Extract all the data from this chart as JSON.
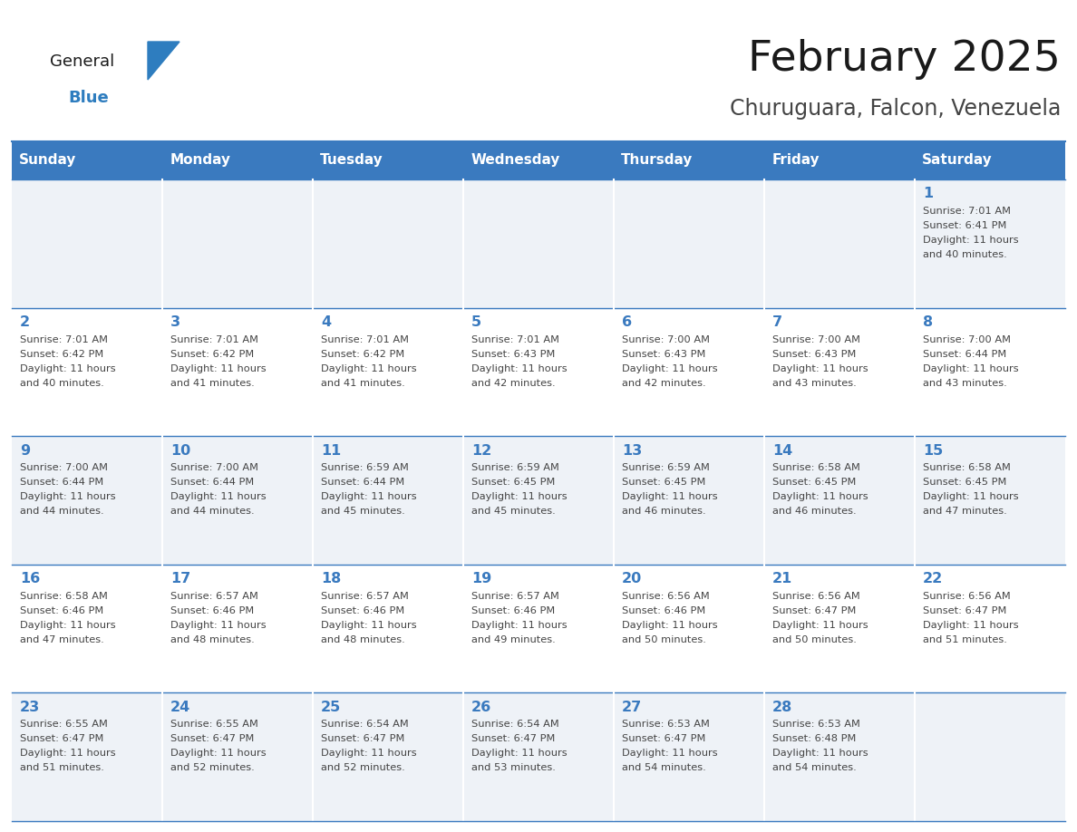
{
  "title": "February 2025",
  "subtitle": "Churuguara, Falcon, Venezuela",
  "days_of_week": [
    "Sunday",
    "Monday",
    "Tuesday",
    "Wednesday",
    "Thursday",
    "Friday",
    "Saturday"
  ],
  "header_bg": "#3a7abf",
  "header_text_color": "#ffffff",
  "cell_bg_odd": "#eef2f7",
  "cell_bg_even": "#ffffff",
  "border_color": "#3a7abf",
  "day_number_color": "#3a7abf",
  "text_color": "#444444",
  "title_color": "#1a1a1a",
  "subtitle_color": "#444444",
  "logo_general_color": "#1a1a1a",
  "logo_blue_color": "#2e7dbf",
  "calendar_data": [
    [
      null,
      null,
      null,
      null,
      null,
      null,
      {
        "day": 1,
        "sunrise": "7:01 AM",
        "sunset": "6:41 PM",
        "daylight": "11 hours",
        "daylight2": "and 40 minutes."
      }
    ],
    [
      {
        "day": 2,
        "sunrise": "7:01 AM",
        "sunset": "6:42 PM",
        "daylight": "11 hours",
        "daylight2": "and 40 minutes."
      },
      {
        "day": 3,
        "sunrise": "7:01 AM",
        "sunset": "6:42 PM",
        "daylight": "11 hours",
        "daylight2": "and 41 minutes."
      },
      {
        "day": 4,
        "sunrise": "7:01 AM",
        "sunset": "6:42 PM",
        "daylight": "11 hours",
        "daylight2": "and 41 minutes."
      },
      {
        "day": 5,
        "sunrise": "7:01 AM",
        "sunset": "6:43 PM",
        "daylight": "11 hours",
        "daylight2": "and 42 minutes."
      },
      {
        "day": 6,
        "sunrise": "7:00 AM",
        "sunset": "6:43 PM",
        "daylight": "11 hours",
        "daylight2": "and 42 minutes."
      },
      {
        "day": 7,
        "sunrise": "7:00 AM",
        "sunset": "6:43 PM",
        "daylight": "11 hours",
        "daylight2": "and 43 minutes."
      },
      {
        "day": 8,
        "sunrise": "7:00 AM",
        "sunset": "6:44 PM",
        "daylight": "11 hours",
        "daylight2": "and 43 minutes."
      }
    ],
    [
      {
        "day": 9,
        "sunrise": "7:00 AM",
        "sunset": "6:44 PM",
        "daylight": "11 hours",
        "daylight2": "and 44 minutes."
      },
      {
        "day": 10,
        "sunrise": "7:00 AM",
        "sunset": "6:44 PM",
        "daylight": "11 hours",
        "daylight2": "and 44 minutes."
      },
      {
        "day": 11,
        "sunrise": "6:59 AM",
        "sunset": "6:44 PM",
        "daylight": "11 hours",
        "daylight2": "and 45 minutes."
      },
      {
        "day": 12,
        "sunrise": "6:59 AM",
        "sunset": "6:45 PM",
        "daylight": "11 hours",
        "daylight2": "and 45 minutes."
      },
      {
        "day": 13,
        "sunrise": "6:59 AM",
        "sunset": "6:45 PM",
        "daylight": "11 hours",
        "daylight2": "and 46 minutes."
      },
      {
        "day": 14,
        "sunrise": "6:58 AM",
        "sunset": "6:45 PM",
        "daylight": "11 hours",
        "daylight2": "and 46 minutes."
      },
      {
        "day": 15,
        "sunrise": "6:58 AM",
        "sunset": "6:45 PM",
        "daylight": "11 hours",
        "daylight2": "and 47 minutes."
      }
    ],
    [
      {
        "day": 16,
        "sunrise": "6:58 AM",
        "sunset": "6:46 PM",
        "daylight": "11 hours",
        "daylight2": "and 47 minutes."
      },
      {
        "day": 17,
        "sunrise": "6:57 AM",
        "sunset": "6:46 PM",
        "daylight": "11 hours",
        "daylight2": "and 48 minutes."
      },
      {
        "day": 18,
        "sunrise": "6:57 AM",
        "sunset": "6:46 PM",
        "daylight": "11 hours",
        "daylight2": "and 48 minutes."
      },
      {
        "day": 19,
        "sunrise": "6:57 AM",
        "sunset": "6:46 PM",
        "daylight": "11 hours",
        "daylight2": "and 49 minutes."
      },
      {
        "day": 20,
        "sunrise": "6:56 AM",
        "sunset": "6:46 PM",
        "daylight": "11 hours",
        "daylight2": "and 50 minutes."
      },
      {
        "day": 21,
        "sunrise": "6:56 AM",
        "sunset": "6:47 PM",
        "daylight": "11 hours",
        "daylight2": "and 50 minutes."
      },
      {
        "day": 22,
        "sunrise": "6:56 AM",
        "sunset": "6:47 PM",
        "daylight": "11 hours",
        "daylight2": "and 51 minutes."
      }
    ],
    [
      {
        "day": 23,
        "sunrise": "6:55 AM",
        "sunset": "6:47 PM",
        "daylight": "11 hours",
        "daylight2": "and 51 minutes."
      },
      {
        "day": 24,
        "sunrise": "6:55 AM",
        "sunset": "6:47 PM",
        "daylight": "11 hours",
        "daylight2": "and 52 minutes."
      },
      {
        "day": 25,
        "sunrise": "6:54 AM",
        "sunset": "6:47 PM",
        "daylight": "11 hours",
        "daylight2": "and 52 minutes."
      },
      {
        "day": 26,
        "sunrise": "6:54 AM",
        "sunset": "6:47 PM",
        "daylight": "11 hours",
        "daylight2": "and 53 minutes."
      },
      {
        "day": 27,
        "sunrise": "6:53 AM",
        "sunset": "6:47 PM",
        "daylight": "11 hours",
        "daylight2": "and 54 minutes."
      },
      {
        "day": 28,
        "sunrise": "6:53 AM",
        "sunset": "6:48 PM",
        "daylight": "11 hours",
        "daylight2": "and 54 minutes."
      },
      null
    ]
  ],
  "fig_width": 11.88,
  "fig_height": 9.18,
  "dpi": 100
}
